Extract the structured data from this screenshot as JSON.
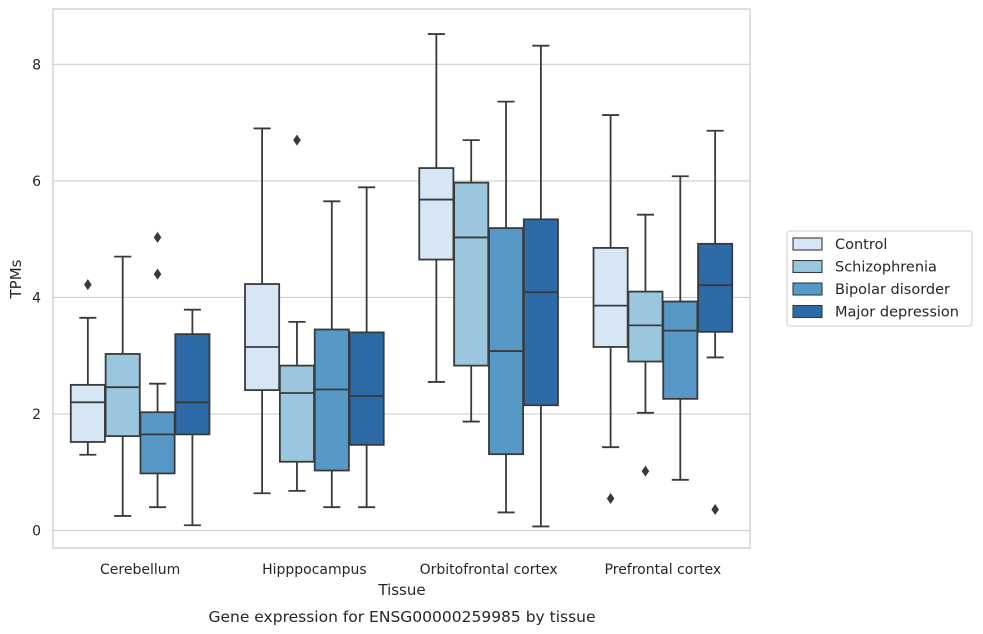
{
  "caption": "Gene expression for ENSG00000259985 by tissue",
  "colors": {
    "Control": "#d6e6f4",
    "Schizophrenia": "#9ac6de",
    "Bipolar disorder": "#5799c6",
    "Major depression": "#2c6aa8",
    "line": "#3a3a3a",
    "grid": "#cfcfcf",
    "spine": "#cccccc"
  },
  "chart_data": {
    "type": "box",
    "xlabel": "Tissue",
    "ylabel": "TPMs",
    "ylim": [
      -0.3,
      8.95
    ],
    "yticks": [
      0,
      2,
      4,
      6,
      8
    ],
    "grid": "horizontal",
    "legend_position": "right",
    "categories": [
      "Cerebellum",
      "Hipppocampus",
      "Orbitofrontal cortex",
      "Prefrontal cortex"
    ],
    "series": [
      {
        "name": "Control",
        "boxes": [
          {
            "whisker_low": 1.3,
            "q1": 1.52,
            "median": 2.2,
            "q3": 2.5,
            "whisker_high": 3.65,
            "outliers": [
              4.22
            ]
          },
          {
            "whisker_low": 0.64,
            "q1": 2.41,
            "median": 3.15,
            "q3": 4.23,
            "whisker_high": 6.9,
            "outliers": []
          },
          {
            "whisker_low": 2.55,
            "q1": 4.65,
            "median": 5.68,
            "q3": 6.22,
            "whisker_high": 8.52,
            "outliers": []
          },
          {
            "whisker_low": 1.43,
            "q1": 3.15,
            "median": 3.86,
            "q3": 4.85,
            "whisker_high": 7.13,
            "outliers": [
              0.55
            ]
          }
        ]
      },
      {
        "name": "Schizophrenia",
        "boxes": [
          {
            "whisker_low": 0.25,
            "q1": 1.62,
            "median": 2.46,
            "q3": 3.03,
            "whisker_high": 4.7,
            "outliers": []
          },
          {
            "whisker_low": 0.68,
            "q1": 1.18,
            "median": 2.36,
            "q3": 2.83,
            "whisker_high": 3.58,
            "outliers": [
              6.7
            ]
          },
          {
            "whisker_low": 1.87,
            "q1": 2.83,
            "median": 5.03,
            "q3": 5.97,
            "whisker_high": 6.7,
            "outliers": []
          },
          {
            "whisker_low": 2.02,
            "q1": 2.9,
            "median": 3.52,
            "q3": 4.1,
            "whisker_high": 5.42,
            "outliers": [
              1.02
            ]
          }
        ]
      },
      {
        "name": "Bipolar disorder",
        "boxes": [
          {
            "whisker_low": 0.4,
            "q1": 0.98,
            "median": 1.65,
            "q3": 2.03,
            "whisker_high": 2.52,
            "outliers": [
              4.4,
              5.03
            ]
          },
          {
            "whisker_low": 0.4,
            "q1": 1.03,
            "median": 2.42,
            "q3": 3.45,
            "whisker_high": 5.65,
            "outliers": []
          },
          {
            "whisker_low": 0.31,
            "q1": 1.31,
            "median": 3.08,
            "q3": 5.19,
            "whisker_high": 7.36,
            "outliers": []
          },
          {
            "whisker_low": 0.87,
            "q1": 2.26,
            "median": 3.43,
            "q3": 3.93,
            "whisker_high": 6.08,
            "outliers": []
          }
        ]
      },
      {
        "name": "Major depression",
        "boxes": [
          {
            "whisker_low": 0.09,
            "q1": 1.65,
            "median": 2.2,
            "q3": 3.37,
            "whisker_high": 3.79,
            "outliers": []
          },
          {
            "whisker_low": 0.4,
            "q1": 1.47,
            "median": 2.31,
            "q3": 3.4,
            "whisker_high": 5.89,
            "outliers": []
          },
          {
            "whisker_low": 0.07,
            "q1": 2.15,
            "median": 4.09,
            "q3": 5.34,
            "whisker_high": 8.32,
            "outliers": []
          },
          {
            "whisker_low": 2.97,
            "q1": 3.41,
            "median": 4.21,
            "q3": 4.92,
            "whisker_high": 6.86,
            "outliers": [
              0.36
            ]
          }
        ]
      }
    ]
  }
}
